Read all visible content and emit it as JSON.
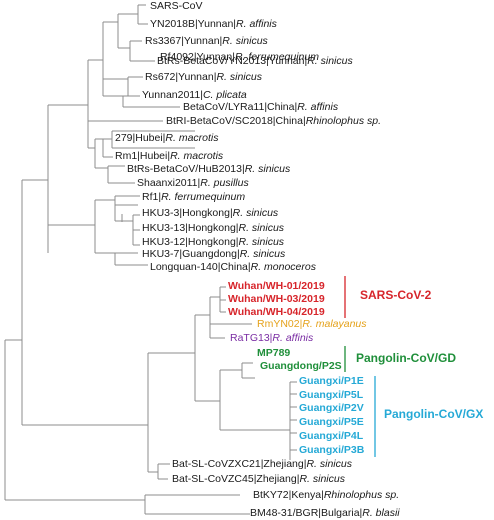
{
  "taxa": {
    "sars_cov": {
      "name": "SARS-CoV",
      "host": ""
    },
    "yn2018b": {
      "name": "YN2018B|Yunnan|",
      "host": "R. affinis"
    },
    "rs3367": {
      "name": "Rs3367|Yunnan|",
      "host": "R. sinicus"
    },
    "rf4092": {
      "name": "Rf4092|Yunnan|",
      "host": "R. ferrumequinum"
    },
    "btrs_yn2013": {
      "name": "BtRs-BetaCoV/YN2013|Yunnan|",
      "host": "R. sinicus"
    },
    "rs672": {
      "name": "Rs672|Yunnan|",
      "host": "R. sinicus"
    },
    "yunnan2011": {
      "name": "Yunnan2011|",
      "host": "C. plicata"
    },
    "lyra11": {
      "name": "BetaCoV/LYRa11|China|",
      "host": "R. affinis"
    },
    "btri_sc2018": {
      "name": "BtRI-BetaCoV/SC2018|China|",
      "host": "Rhinolophus sp."
    },
    "h279": {
      "name": "279|Hubei|",
      "host": "R. macrotis"
    },
    "rm1": {
      "name": "Rm1|Hubei|",
      "host": "R. macrotis"
    },
    "btrs_hub2013": {
      "name": "BtRs-BetaCoV/HuB2013|",
      "host": "R. sinicus"
    },
    "shaanxi2011": {
      "name": "Shaanxi2011|",
      "host": "R. pusillus"
    },
    "rf1": {
      "name": "Rf1|",
      "host": "R. ferrumequinum"
    },
    "hku3_3": {
      "name": "HKU3-3|Hongkong|",
      "host": "R. sinicus"
    },
    "hku3_13": {
      "name": "HKU3-13|Hongkong|",
      "host": "R. sinicus"
    },
    "hku3_12": {
      "name": "HKU3-12|Hongkong|",
      "host": "R. sinicus"
    },
    "hku3_7": {
      "name": "HKU3-7|Guangdong|",
      "host": "R. sinicus"
    },
    "longquan": {
      "name": "Longquan-140|China|",
      "host": "R. monoceros"
    },
    "wh01": {
      "name": "Wuhan/WH-01/2019",
      "host": ""
    },
    "wh03": {
      "name": "Wuhan/WH-03/2019",
      "host": ""
    },
    "wh04": {
      "name": "Wuhan/WH-04/2019",
      "host": ""
    },
    "rmyn02": {
      "name": "RmYN02|",
      "host": "R. malayanus"
    },
    "ratg13": {
      "name": "RaTG13|",
      "host": "R. affinis"
    },
    "mp789": {
      "name": "MP789",
      "host": ""
    },
    "gd_p2s": {
      "name": "Guangdong/P2S",
      "host": ""
    },
    "gx_p1e": {
      "name": "Guangxi/P1E",
      "host": ""
    },
    "gx_p5l": {
      "name": "Guangxi/P5L",
      "host": ""
    },
    "gx_p2v": {
      "name": "Guangxi/P2V",
      "host": ""
    },
    "gx_p5e": {
      "name": "Guangxi/P5E",
      "host": ""
    },
    "gx_p4l": {
      "name": "Guangxi/P4L",
      "host": ""
    },
    "gx_p3b": {
      "name": "Guangxi/P3B",
      "host": ""
    },
    "zxc21": {
      "name": "Bat-SL-CoVZXC21|Zhejiang|",
      "host": "R. sinicus"
    },
    "zc45": {
      "name": "Bat-SL-CoVZC45|Zhejiang|",
      "host": "R. sinicus"
    },
    "btky72": {
      "name": "BtKY72|Kenya|",
      "host": "Rhinolophus sp."
    },
    "bm48": {
      "name": "BM48-31/BGR|Bulgaria|",
      "host": "R. blasii"
    }
  },
  "groups": {
    "sars_cov_2": "SARS-CoV-2",
    "pangolin_gd": "Pangolin-CoV/GD",
    "pangolin_gx": "Pangolin-CoV/GX"
  },
  "colors": {
    "branch": "#8c8c8c",
    "sars_cov_2": "#d7252b",
    "rmyn02": "#e5a21b",
    "ratg13": "#7a2da3",
    "pangolin_gd": "#1f8f3a",
    "pangolin_gx": "#25a9d6"
  }
}
